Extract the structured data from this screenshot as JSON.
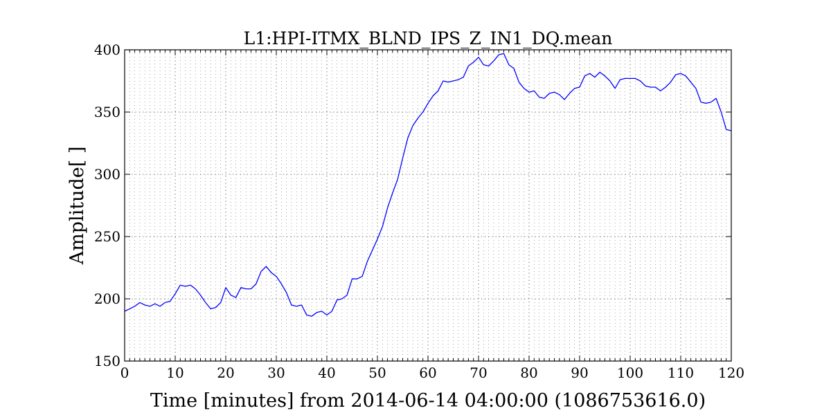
{
  "chart_data": {
    "type": "line",
    "title": "L1:HPI-ITMX_BLND_IPS_Z_IN1_DQ.mean",
    "xlabel": "Time [minutes] from 2014-06-14 04:00:00 (1086753616.0)",
    "ylabel": "Amplitude[ ]",
    "xlim": [
      0,
      120
    ],
    "ylim": [
      150,
      400
    ],
    "xticks": [
      0,
      10,
      20,
      30,
      40,
      50,
      60,
      70,
      80,
      90,
      100,
      110,
      120
    ],
    "yticks": [
      150,
      200,
      250,
      300,
      350,
      400
    ],
    "x_minor_step": 1,
    "grid": true,
    "series": [
      {
        "color": "#0000ff",
        "x": [
          0,
          1,
          2,
          3,
          4,
          5,
          6,
          7,
          8,
          9,
          10,
          11,
          12,
          13,
          14,
          15,
          16,
          17,
          18,
          19,
          20,
          21,
          22,
          23,
          24,
          25,
          26,
          27,
          28,
          29,
          30,
          31,
          32,
          33,
          34,
          35,
          36,
          37,
          38,
          39,
          40,
          41,
          42,
          43,
          44,
          45,
          46,
          47,
          48,
          49,
          50,
          51,
          52,
          53,
          54,
          55,
          56,
          57,
          58,
          59,
          60,
          61,
          62,
          63,
          64,
          65,
          66,
          67,
          68,
          69,
          70,
          71,
          72,
          73,
          74,
          75,
          76,
          77,
          78,
          79,
          80,
          81,
          82,
          83,
          84,
          85,
          86,
          87,
          88,
          89,
          90,
          91,
          92,
          93,
          94,
          95,
          96,
          97,
          98,
          99,
          100,
          101,
          102,
          103,
          104,
          105,
          106,
          107,
          108,
          109,
          110,
          111,
          112,
          113,
          114,
          115,
          116,
          117,
          118,
          119,
          120
        ],
        "y": [
          190,
          192,
          194,
          197,
          195,
          194,
          196,
          194,
          197,
          198,
          204,
          211,
          210,
          211,
          208,
          203,
          197,
          192,
          193,
          197,
          209,
          203,
          201,
          209,
          208,
          208,
          212,
          222,
          226,
          221,
          218,
          212,
          205,
          195,
          194,
          195,
          187,
          186,
          189,
          190,
          187,
          190,
          199,
          200,
          203,
          216,
          216,
          218,
          230,
          239,
          248,
          258,
          273,
          285,
          296,
          313,
          329,
          339,
          345,
          350,
          357,
          363,
          367,
          375,
          374,
          375,
          376,
          378,
          387,
          390,
          394,
          388,
          387,
          391,
          396,
          397,
          388,
          385,
          374,
          369,
          366,
          367,
          362,
          361,
          365,
          366,
          364,
          360,
          365,
          369,
          370,
          379,
          381,
          378,
          382,
          379,
          375,
          369,
          376,
          377,
          377,
          377,
          375,
          371,
          370,
          370,
          367,
          370,
          374,
          380,
          381,
          379,
          374,
          369,
          358,
          357,
          358,
          361,
          350,
          336,
          335
        ]
      }
    ]
  }
}
